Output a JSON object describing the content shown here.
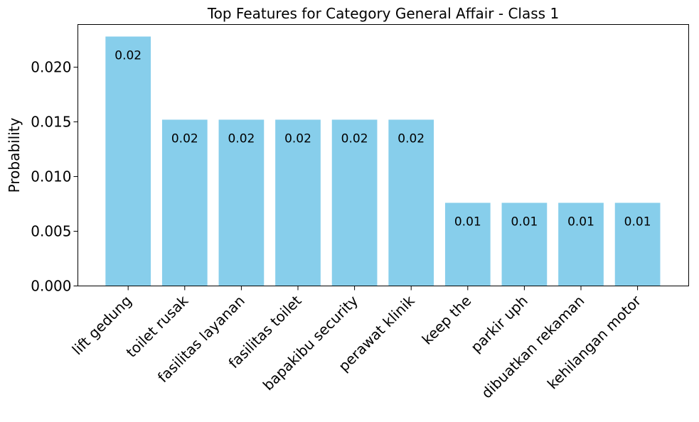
{
  "chart_data": {
    "type": "bar",
    "title": "Top Features for Category General Affair - Class 1",
    "xlabel": "",
    "ylabel": "Probability",
    "categories": [
      "lift gedung",
      "toilet rusak",
      "fasilitas layanan",
      "fasilitas toilet",
      "bapakibu security",
      "perawat klinik",
      "keep the",
      "parkir uph",
      "dibuatkan rekaman",
      "kehilangan motor"
    ],
    "values": [
      0.0228,
      0.0152,
      0.0152,
      0.0152,
      0.0152,
      0.0152,
      0.0076,
      0.0076,
      0.0076,
      0.0076
    ],
    "data_labels": [
      "0.02",
      "0.02",
      "0.02",
      "0.02",
      "0.02",
      "0.02",
      "0.01",
      "0.01",
      "0.01",
      "0.01"
    ],
    "ylim": [
      0,
      0.0239
    ],
    "yticks": [
      0,
      0.005,
      0.01,
      0.015,
      0.02
    ],
    "ytick_labels": [
      "0.000",
      "0.005",
      "0.010",
      "0.015",
      "0.020"
    ],
    "bar_color": "#87CEEB",
    "grid": false,
    "legend": "none"
  }
}
